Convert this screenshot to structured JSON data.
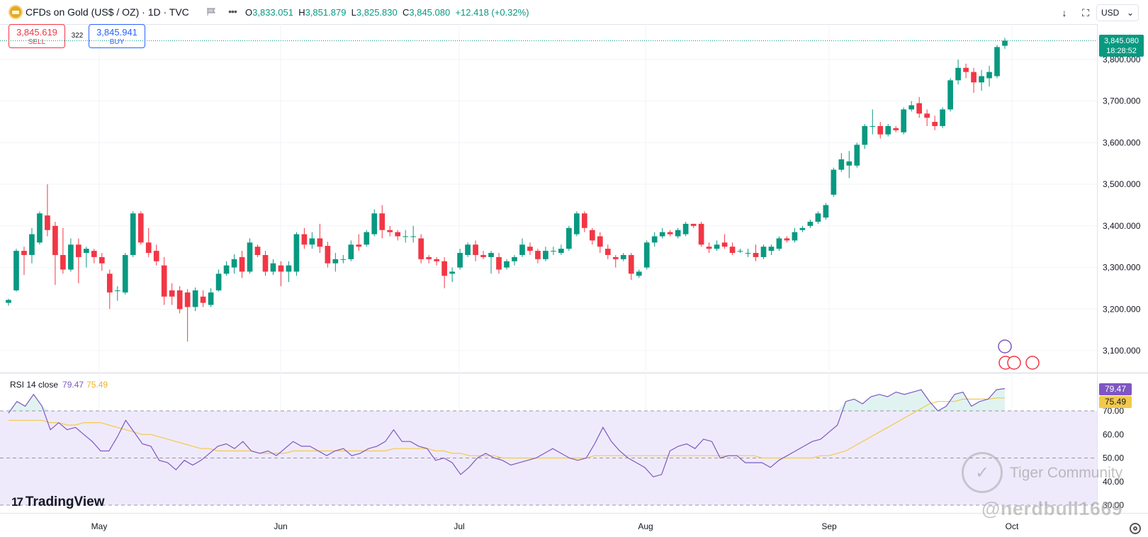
{
  "header": {
    "symbol_title": "CFDs on Gold (US$ / OZ) · 1D · TVC",
    "ohlc": {
      "open_label": "O",
      "open": "3,833.051",
      "high_label": "H",
      "high": "3,851.879",
      "low_label": "L",
      "low": "3,825.830",
      "close_label": "C",
      "close": "3,845.080",
      "change": "+12.418 (+0.32%)"
    }
  },
  "trade": {
    "sell_price": "3,845.619",
    "sell_label": "SELL",
    "spread": "322",
    "buy_price": "3,845.941",
    "buy_label": "BUY"
  },
  "toolbar": {
    "currency": "USD",
    "currency_caret": "⌄",
    "download_glyph": "↓",
    "fullscreen_glyph": "⛶"
  },
  "last_price_tag": {
    "price": "3,845.080",
    "countdown": "18:28:52"
  },
  "rsi": {
    "label": "RSI 14 close",
    "rsi_value": "79.47",
    "ma_value": "75.49"
  },
  "branding": {
    "logo_mark": "17",
    "logo_text": "TradingView",
    "watermark_mark": "✓",
    "watermark_text": "Tiger Community",
    "watermark_handle": "@nerdbull1669"
  },
  "colors": {
    "up": "#089981",
    "down": "#f23645",
    "rsi_line": "#7e57c2",
    "rsi_ma": "#f2c94c",
    "rsi_band": "#efeafb",
    "grid": "#f0f3fa"
  },
  "chart_data": [
    {
      "type": "candlestick",
      "title": "CFDs on Gold (US$ / OZ) · 1D · TVC",
      "x_tick_labels": [
        "May",
        "Jun",
        "Jul",
        "Aug",
        "Sep",
        "Oct"
      ],
      "y_tick_labels": [
        "3,100.000",
        "3,200.000",
        "3,300.000",
        "3,400.000",
        "3,500.000",
        "3,600.000",
        "3,700.000",
        "3,800.000"
      ],
      "ylim": [
        3070,
        3880
      ],
      "last_price": 3845.08,
      "grid": true,
      "candles_ohlc": [
        [
          3215,
          3222,
          3208,
          3225
        ],
        [
          3245,
          3340,
          3242,
          3345
        ],
        [
          3340,
          3330,
          3282,
          3350
        ],
        [
          3330,
          3380,
          3310,
          3395
        ],
        [
          3360,
          3430,
          3355,
          3435
        ],
        [
          3425,
          3390,
          3375,
          3500
        ],
        [
          3400,
          3330,
          3258,
          3410
        ],
        [
          3330,
          3295,
          3285,
          3395
        ],
        [
          3295,
          3355,
          3290,
          3370
        ],
        [
          3355,
          3325,
          3262,
          3370
        ],
        [
          3335,
          3345,
          3300,
          3350
        ],
        [
          3340,
          3325,
          3310,
          3345
        ],
        [
          3325,
          3310,
          3292,
          3335
        ],
        [
          3285,
          3240,
          3200,
          3295
        ],
        [
          3245,
          3245,
          3220,
          3255
        ],
        [
          3240,
          3330,
          3235,
          3335
        ],
        [
          3330,
          3430,
          3325,
          3435
        ],
        [
          3430,
          3360,
          3355,
          3435
        ],
        [
          3360,
          3335,
          3325,
          3395
        ],
        [
          3340,
          3315,
          3305,
          3355
        ],
        [
          3305,
          3230,
          3210,
          3325
        ],
        [
          3245,
          3230,
          3210,
          3262
        ],
        [
          3245,
          3200,
          3190,
          3255
        ],
        [
          3240,
          3205,
          3122,
          3248
        ],
        [
          3205,
          3245,
          3195,
          3252
        ],
        [
          3230,
          3215,
          3205,
          3245
        ],
        [
          3210,
          3240,
          3205,
          3250
        ],
        [
          3245,
          3285,
          3242,
          3295
        ],
        [
          3285,
          3305,
          3280,
          3315
        ],
        [
          3300,
          3320,
          3285,
          3332
        ],
        [
          3325,
          3290,
          3275,
          3340
        ],
        [
          3290,
          3360,
          3285,
          3370
        ],
        [
          3350,
          3330,
          3325,
          3355
        ],
        [
          3330,
          3290,
          3280,
          3340
        ],
        [
          3290,
          3310,
          3282,
          3320
        ],
        [
          3305,
          3290,
          3255,
          3315
        ],
        [
          3290,
          3305,
          3265,
          3315
        ],
        [
          3290,
          3380,
          3280,
          3385
        ],
        [
          3380,
          3355,
          3345,
          3395
        ],
        [
          3355,
          3370,
          3345,
          3385
        ],
        [
          3370,
          3350,
          3335,
          3405
        ],
        [
          3352,
          3310,
          3300,
          3362
        ],
        [
          3310,
          3320,
          3290,
          3335
        ],
        [
          3320,
          3320,
          3310,
          3330
        ],
        [
          3320,
          3355,
          3315,
          3365
        ],
        [
          3355,
          3350,
          3340,
          3380
        ],
        [
          3355,
          3385,
          3350,
          3390
        ],
        [
          3380,
          3430,
          3375,
          3440
        ],
        [
          3430,
          3390,
          3370,
          3450
        ],
        [
          3390,
          3385,
          3375,
          3400
        ],
        [
          3385,
          3375,
          3365,
          3390
        ],
        [
          3375,
          3375,
          3360,
          3390
        ],
        [
          3375,
          3375,
          3360,
          3400
        ],
        [
          3370,
          3320,
          3310,
          3380
        ],
        [
          3325,
          3320,
          3310,
          3330
        ],
        [
          3320,
          3315,
          3305,
          3325
        ],
        [
          3315,
          3280,
          3250,
          3325
        ],
        [
          3285,
          3290,
          3265,
          3300
        ],
        [
          3300,
          3335,
          3295,
          3345
        ],
        [
          3330,
          3355,
          3325,
          3360
        ],
        [
          3355,
          3330,
          3315,
          3365
        ],
        [
          3330,
          3325,
          3320,
          3340
        ],
        [
          3325,
          3335,
          3285,
          3340
        ],
        [
          3325,
          3295,
          3285,
          3335
        ],
        [
          3300,
          3315,
          3295,
          3320
        ],
        [
          3315,
          3325,
          3305,
          3330
        ],
        [
          3330,
          3355,
          3325,
          3370
        ],
        [
          3350,
          3340,
          3330,
          3360
        ],
        [
          3340,
          3320,
          3310,
          3345
        ],
        [
          3320,
          3340,
          3315,
          3350
        ],
        [
          3340,
          3340,
          3330,
          3350
        ],
        [
          3335,
          3345,
          3330,
          3355
        ],
        [
          3345,
          3395,
          3340,
          3400
        ],
        [
          3380,
          3430,
          3375,
          3435
        ],
        [
          3430,
          3395,
          3385,
          3435
        ],
        [
          3390,
          3365,
          3355,
          3395
        ],
        [
          3375,
          3350,
          3335,
          3385
        ],
        [
          3345,
          3330,
          3320,
          3355
        ],
        [
          3325,
          3320,
          3300,
          3330
        ],
        [
          3320,
          3330,
          3315,
          3335
        ],
        [
          3330,
          3285,
          3270,
          3335
        ],
        [
          3280,
          3290,
          3275,
          3295
        ],
        [
          3300,
          3360,
          3295,
          3365
        ],
        [
          3360,
          3375,
          3350,
          3385
        ],
        [
          3375,
          3385,
          3370,
          3395
        ],
        [
          3385,
          3380,
          3375,
          3390
        ],
        [
          3375,
          3390,
          3370,
          3395
        ],
        [
          3380,
          3405,
          3375,
          3410
        ],
        [
          3405,
          3400,
          3395,
          3405
        ],
        [
          3405,
          3355,
          3350,
          3410
        ],
        [
          3350,
          3345,
          3335,
          3360
        ],
        [
          3345,
          3355,
          3340,
          3365
        ],
        [
          3360,
          3350,
          3345,
          3380
        ],
        [
          3350,
          3335,
          3330,
          3360
        ],
        [
          3340,
          3340,
          3335,
          3345
        ],
        [
          3335,
          3335,
          3325,
          3345
        ],
        [
          3335,
          3325,
          3315,
          3355
        ],
        [
          3325,
          3350,
          3320,
          3355
        ],
        [
          3340,
          3350,
          3330,
          3355
        ],
        [
          3345,
          3370,
          3340,
          3375
        ],
        [
          3370,
          3365,
          3360,
          3375
        ],
        [
          3365,
          3385,
          3360,
          3395
        ],
        [
          3390,
          3395,
          3385,
          3400
        ],
        [
          3400,
          3410,
          3395,
          3415
        ],
        [
          3410,
          3430,
          3405,
          3435
        ],
        [
          3420,
          3450,
          3415,
          3455
        ],
        [
          3475,
          3535,
          3470,
          3540
        ],
        [
          3535,
          3560,
          3530,
          3575
        ],
        [
          3545,
          3555,
          3515,
          3580
        ],
        [
          3545,
          3595,
          3540,
          3600
        ],
        [
          3595,
          3640,
          3585,
          3645
        ],
        [
          3640,
          3640,
          3620,
          3680
        ],
        [
          3640,
          3620,
          3610,
          3650
        ],
        [
          3620,
          3640,
          3615,
          3645
        ],
        [
          3635,
          3630,
          3625,
          3640
        ],
        [
          3625,
          3680,
          3620,
          3685
        ],
        [
          3680,
          3690,
          3675,
          3700
        ],
        [
          3695,
          3670,
          3660,
          3710
        ],
        [
          3670,
          3660,
          3640,
          3680
        ],
        [
          3650,
          3640,
          3630,
          3665
        ],
        [
          3640,
          3680,
          3635,
          3685
        ],
        [
          3680,
          3750,
          3675,
          3755
        ],
        [
          3750,
          3780,
          3740,
          3800
        ],
        [
          3780,
          3770,
          3755,
          3790
        ],
        [
          3770,
          3745,
          3720,
          3780
        ],
        [
          3745,
          3760,
          3725,
          3775
        ],
        [
          3755,
          3770,
          3735,
          3785
        ],
        [
          3760,
          3830,
          3755,
          3835
        ],
        [
          3833.051,
          3845.08,
          3825.83,
          3851.879
        ]
      ]
    },
    {
      "type": "line",
      "title": "RSI 14 close",
      "ylim": [
        25,
        85
      ],
      "y_tick_labels": [
        "30.00",
        "40.00",
        "50.00",
        "60.00",
        "70.00"
      ],
      "levels": [
        30,
        50,
        70
      ],
      "series": [
        {
          "name": "RSI",
          "values": [
            69,
            74,
            72,
            77,
            72,
            62,
            65,
            62,
            63,
            60,
            57,
            53,
            53,
            59,
            66,
            61,
            56,
            55,
            49,
            48,
            45,
            49,
            47,
            49,
            52,
            55,
            56,
            54,
            57,
            53,
            52,
            53,
            51,
            54,
            57,
            55,
            55,
            53,
            51,
            53,
            54,
            51,
            52,
            54,
            55,
            57,
            62,
            57,
            57,
            55,
            54,
            49,
            50,
            48,
            43,
            46,
            50,
            52,
            50,
            49,
            47,
            48,
            49,
            50,
            52,
            54,
            52,
            50,
            49,
            50,
            56,
            63,
            57,
            53,
            50,
            48,
            46,
            42,
            43,
            53,
            55,
            56,
            54,
            58,
            57,
            50,
            51,
            51,
            48,
            48,
            48,
            46,
            49,
            51,
            53,
            55,
            57,
            58,
            61,
            64,
            74,
            75,
            73,
            76,
            77,
            76,
            78,
            77,
            78,
            79,
            74,
            70,
            72,
            77,
            78,
            72,
            74,
            75,
            79,
            79.47
          ]
        },
        {
          "name": "RSI-based MA",
          "values": [
            66,
            66,
            66,
            66,
            66,
            65,
            65,
            64,
            64,
            65,
            65,
            65,
            64,
            63,
            62,
            61,
            60,
            60,
            59,
            58,
            57,
            56,
            55,
            54,
            54,
            53,
            53,
            53,
            53,
            53,
            52,
            52,
            52,
            52,
            53,
            53,
            53,
            53,
            53,
            53,
            53,
            53,
            53,
            53,
            53,
            53,
            54,
            54,
            54,
            54,
            54,
            53,
            53,
            52,
            52,
            51,
            51,
            51,
            51,
            50,
            50,
            50,
            50,
            50,
            50,
            50,
            50,
            50,
            50,
            50,
            51,
            51,
            51,
            51,
            51,
            51,
            51,
            51,
            51,
            51,
            51,
            51,
            51,
            51,
            51,
            51,
            51,
            51,
            51,
            51,
            50,
            50,
            50,
            50,
            50,
            50,
            50,
            51,
            51,
            52,
            53,
            55,
            57,
            59,
            61,
            63,
            65,
            67,
            69,
            71,
            73,
            74,
            74,
            74,
            75,
            75,
            75,
            75,
            75.5,
            75.49
          ]
        }
      ]
    }
  ]
}
